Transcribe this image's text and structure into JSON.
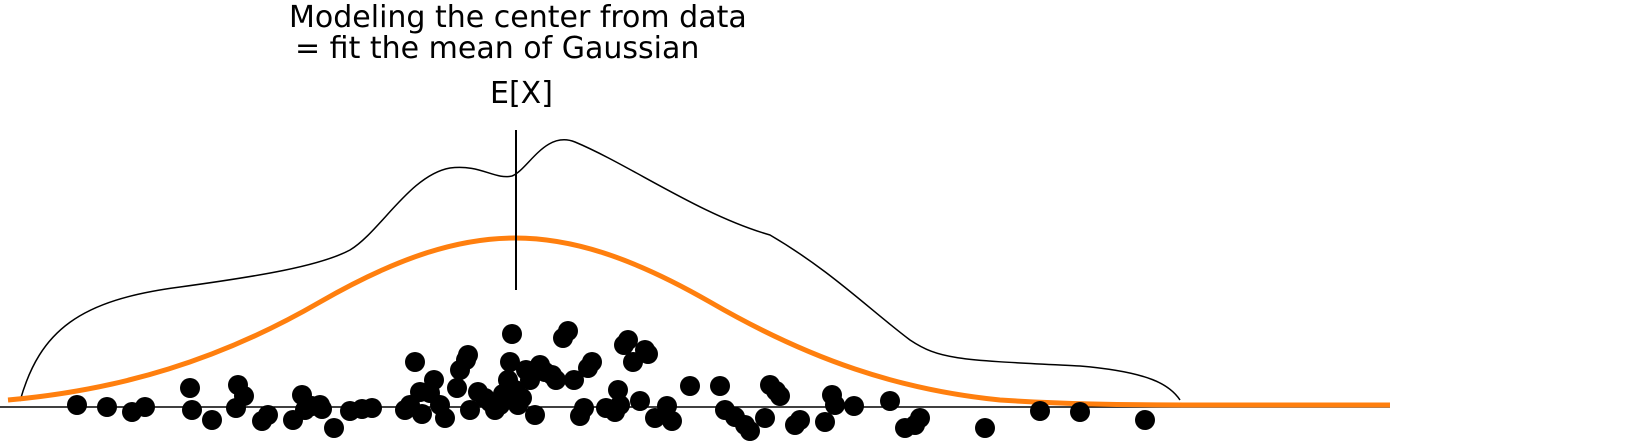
{
  "title_line1": "Modeling the center from data",
  "title_line2": "= fit the mean of Gaussian",
  "mean_label": "E[X]",
  "colors": {
    "background": "#ffffff",
    "gaussian_curve": "#ff7f0e",
    "density_curve": "#000000",
    "points": "#000000",
    "axis": "#000000"
  }
}
